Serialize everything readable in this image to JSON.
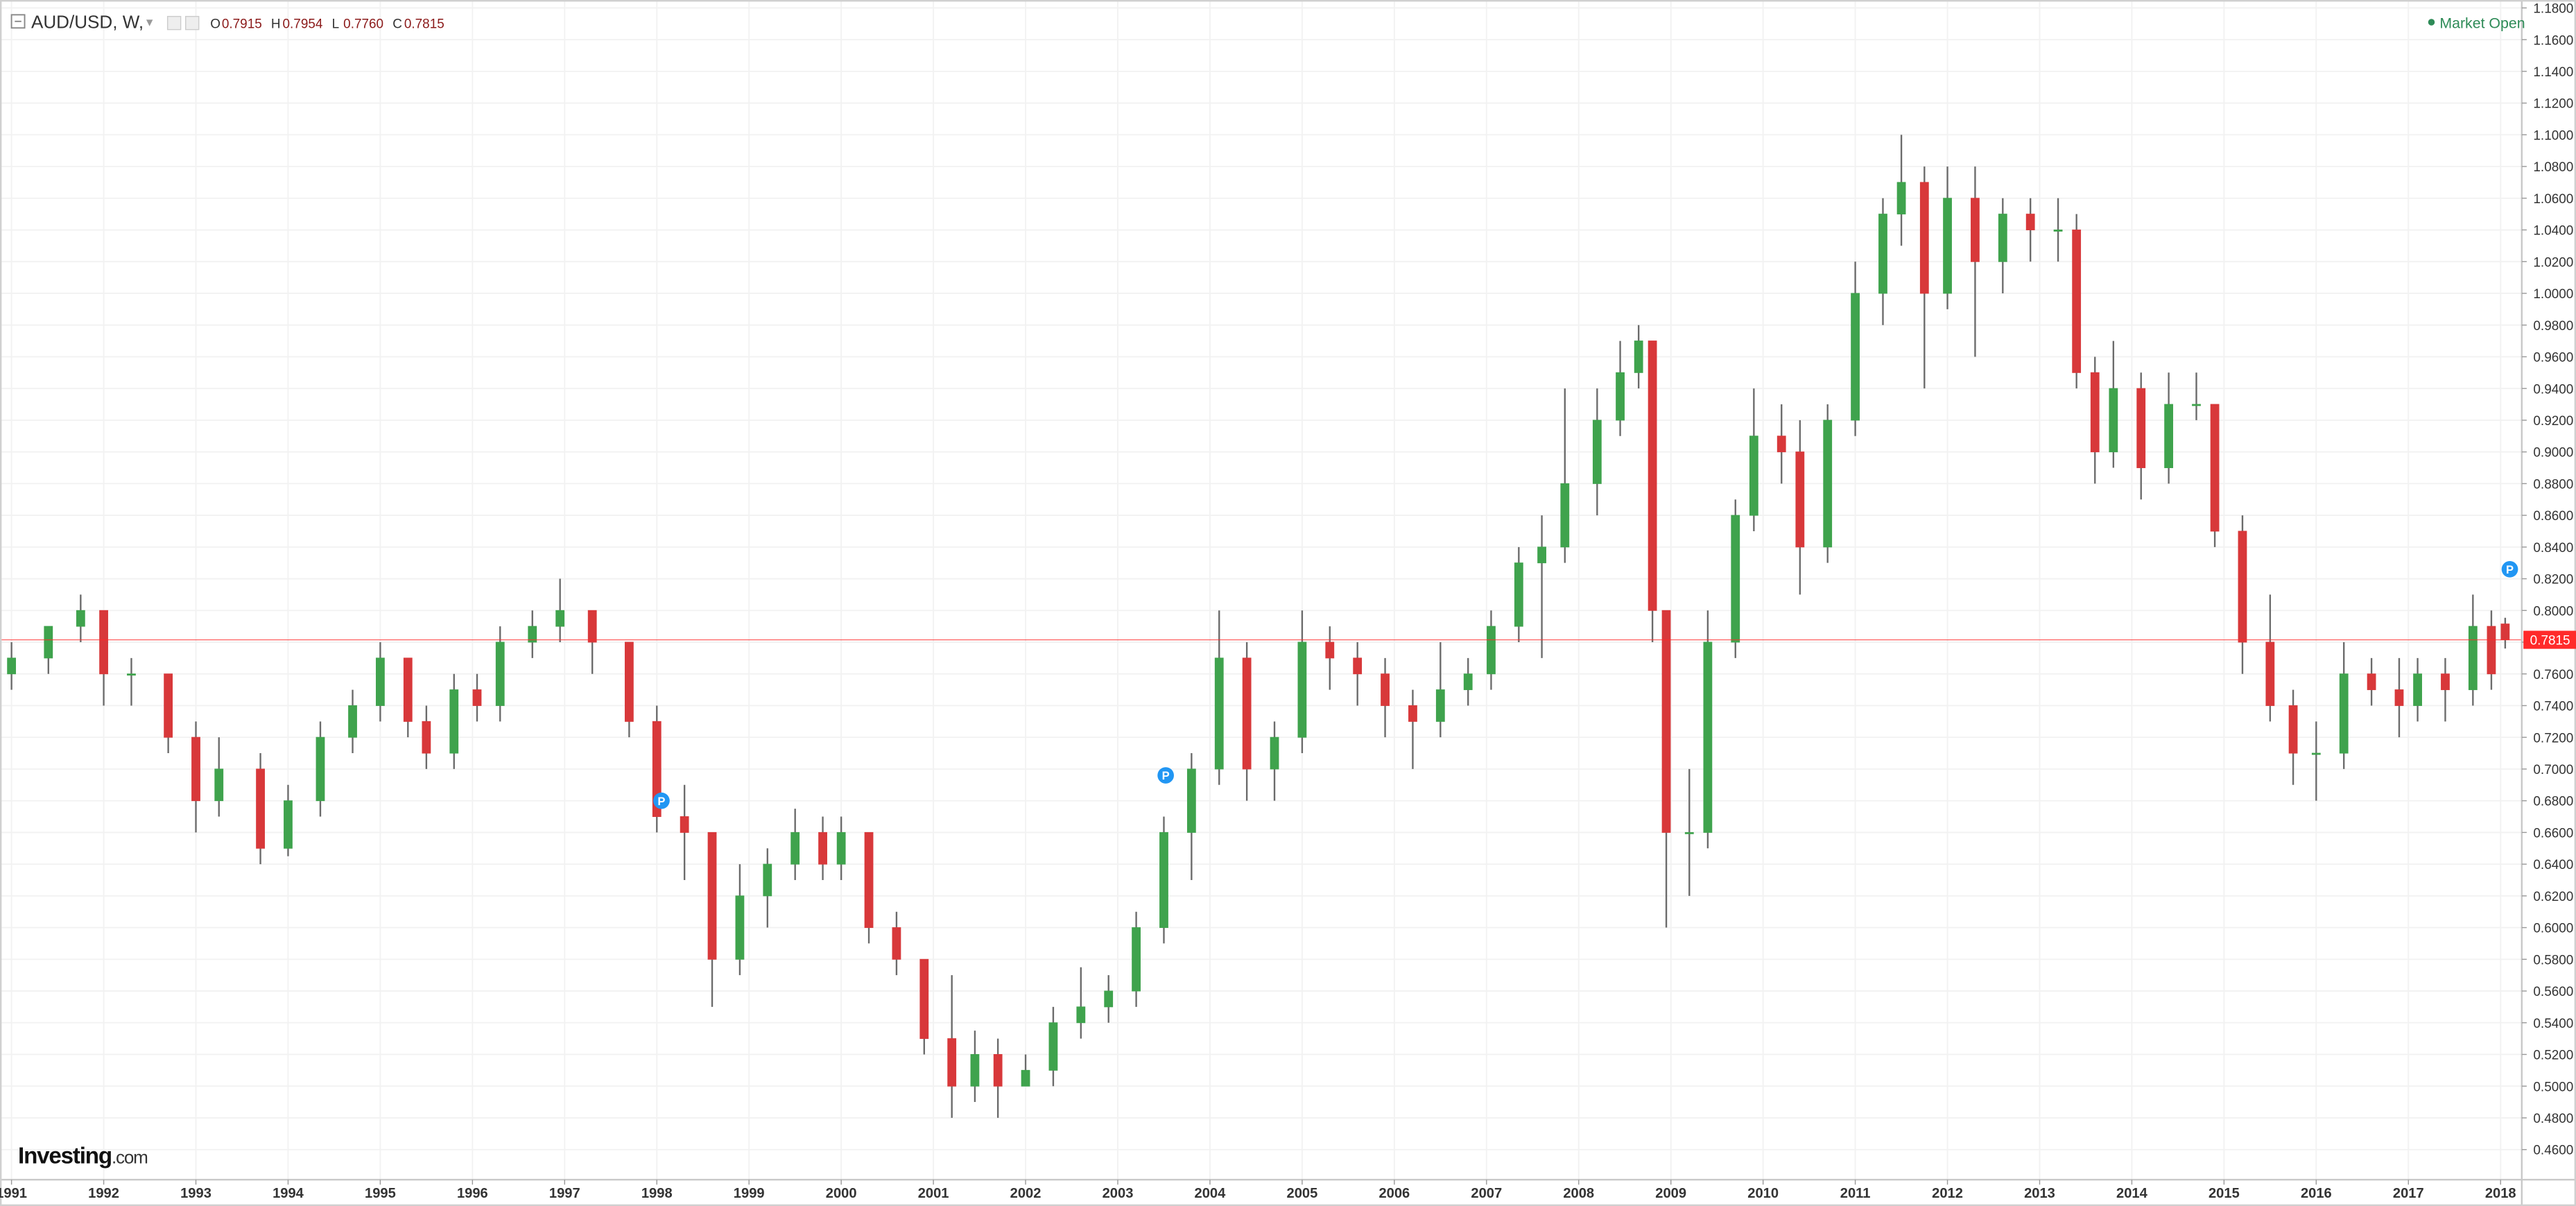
{
  "chart_data": {
    "type": "candlestick",
    "title": "AUD/USD, W,",
    "ohlc": [
      {
        "key": "O",
        "text": "0.7915"
      },
      {
        "key": "H",
        "text": "0.7954"
      },
      {
        "key": "L",
        "text": "0.7760"
      },
      {
        "key": "C",
        "text": "0.7815"
      }
    ],
    "status": "Market Open",
    "watermark": {
      "brand": "Investing",
      "suffix": ".com"
    },
    "colors": {
      "up": "#3fa34d",
      "down": "#d8383a",
      "wick": "#6b6b6b",
      "grid": "#f2f2f2",
      "last": "#ff2a2a",
      "marker": "#2196f3",
      "status": "#2e8b57"
    },
    "grid": true,
    "xlim": [
      1990.875,
      2018.23
    ],
    "ylim": [
      0.441,
      1.185
    ],
    "xticks": [
      1991,
      1992,
      1993,
      1994,
      1995,
      1996,
      1997,
      1998,
      1999,
      2000,
      2001,
      2002,
      2003,
      2004,
      2005,
      2006,
      2007,
      2008,
      2009,
      2010,
      2011,
      2012,
      2013,
      2014,
      2015,
      2016,
      2017,
      2018
    ],
    "yticks": [
      {
        "value": 0.46,
        "label": "0.4600"
      },
      {
        "value": 0.48,
        "label": "0.4800"
      },
      {
        "value": 0.5,
        "label": "0.5000"
      },
      {
        "value": 0.52,
        "label": "0.5200"
      },
      {
        "value": 0.54,
        "label": "0.5400"
      },
      {
        "value": 0.56,
        "label": "0.5600"
      },
      {
        "value": 0.58,
        "label": "0.5800"
      },
      {
        "value": 0.6,
        "label": "0.6000"
      },
      {
        "value": 0.62,
        "label": "0.6200"
      },
      {
        "value": 0.64,
        "label": "0.6400"
      },
      {
        "value": 0.66,
        "label": "0.6600"
      },
      {
        "value": 0.68,
        "label": "0.6800"
      },
      {
        "value": 0.7,
        "label": "0.7000"
      },
      {
        "value": 0.72,
        "label": "0.7200"
      },
      {
        "value": 0.74,
        "label": "0.7400"
      },
      {
        "value": 0.76,
        "label": "0.7600"
      },
      {
        "value": 0.78,
        "label": "0.7800"
      },
      {
        "value": 0.8,
        "label": "0.8000"
      },
      {
        "value": 0.82,
        "label": "0.8200"
      },
      {
        "value": 0.84,
        "label": "0.8400"
      },
      {
        "value": 0.86,
        "label": "0.8600"
      },
      {
        "value": 0.88,
        "label": "0.8800"
      },
      {
        "value": 0.9,
        "label": "0.9000"
      },
      {
        "value": 0.92,
        "label": "0.9200"
      },
      {
        "value": 0.94,
        "label": "0.9400"
      },
      {
        "value": 0.96,
        "label": "0.9600"
      },
      {
        "value": 0.98,
        "label": "0.9800"
      },
      {
        "value": 1.0,
        "label": "1.0000"
      },
      {
        "value": 1.02,
        "label": "1.0200"
      },
      {
        "value": 1.04,
        "label": "1.0400"
      },
      {
        "value": 1.06,
        "label": "1.0600"
      },
      {
        "value": 1.08,
        "label": "1.0800"
      },
      {
        "value": 1.1,
        "label": "1.1000"
      },
      {
        "value": 1.12,
        "label": "1.1200"
      },
      {
        "value": 1.14,
        "label": "1.1400"
      },
      {
        "value": 1.16,
        "label": "1.1600"
      },
      {
        "value": 1.18,
        "label": "1.1800"
      }
    ],
    "last_price": 0.7815,
    "markers": [
      {
        "label": "P",
        "x": 1998.05,
        "y": 0.68
      },
      {
        "label": "P",
        "x": 2003.52,
        "y": 0.696
      },
      {
        "label": "P",
        "x": 2018.1,
        "y": 0.826
      }
    ],
    "candles": [
      {
        "x": 1991.0,
        "open": 0.76,
        "high": 0.78,
        "low": 0.75,
        "close": 0.77
      },
      {
        "x": 1991.4,
        "open": 0.77,
        "high": 0.79,
        "low": 0.76,
        "close": 0.79
      },
      {
        "x": 1991.75,
        "open": 0.79,
        "high": 0.81,
        "low": 0.78,
        "close": 0.8
      },
      {
        "x": 1992.0,
        "open": 0.8,
        "high": 0.8,
        "low": 0.74,
        "close": 0.76
      },
      {
        "x": 1992.3,
        "open": 0.76,
        "high": 0.77,
        "low": 0.74,
        "close": 0.76
      },
      {
        "x": 1992.7,
        "open": 0.76,
        "high": 0.76,
        "low": 0.71,
        "close": 0.72
      },
      {
        "x": 1993.0,
        "open": 0.72,
        "high": 0.73,
        "low": 0.66,
        "close": 0.68
      },
      {
        "x": 1993.25,
        "open": 0.68,
        "high": 0.72,
        "low": 0.67,
        "close": 0.7
      },
      {
        "x": 1993.7,
        "open": 0.7,
        "high": 0.71,
        "low": 0.64,
        "close": 0.65
      },
      {
        "x": 1994.0,
        "open": 0.65,
        "high": 0.69,
        "low": 0.645,
        "close": 0.68
      },
      {
        "x": 1994.35,
        "open": 0.68,
        "high": 0.73,
        "low": 0.67,
        "close": 0.72
      },
      {
        "x": 1994.7,
        "open": 0.72,
        "high": 0.75,
        "low": 0.71,
        "close": 0.74
      },
      {
        "x": 1995.0,
        "open": 0.74,
        "high": 0.78,
        "low": 0.73,
        "close": 0.77
      },
      {
        "x": 1995.3,
        "open": 0.77,
        "high": 0.77,
        "low": 0.72,
        "close": 0.73
      },
      {
        "x": 1995.5,
        "open": 0.73,
        "high": 0.74,
        "low": 0.7,
        "close": 0.71
      },
      {
        "x": 1995.8,
        "open": 0.71,
        "high": 0.76,
        "low": 0.7,
        "close": 0.75
      },
      {
        "x": 1996.05,
        "open": 0.75,
        "high": 0.76,
        "low": 0.73,
        "close": 0.74
      },
      {
        "x": 1996.3,
        "open": 0.74,
        "high": 0.79,
        "low": 0.73,
        "close": 0.78
      },
      {
        "x": 1996.65,
        "open": 0.78,
        "high": 0.8,
        "low": 0.77,
        "close": 0.79
      },
      {
        "x": 1996.95,
        "open": 0.79,
        "high": 0.82,
        "low": 0.78,
        "close": 0.8
      },
      {
        "x": 1997.3,
        "open": 0.8,
        "high": 0.8,
        "low": 0.76,
        "close": 0.78
      },
      {
        "x": 1997.7,
        "open": 0.78,
        "high": 0.78,
        "low": 0.72,
        "close": 0.73
      },
      {
        "x": 1998.0,
        "open": 0.73,
        "high": 0.74,
        "low": 0.66,
        "close": 0.67
      },
      {
        "x": 1998.3,
        "open": 0.67,
        "high": 0.69,
        "low": 0.63,
        "close": 0.66
      },
      {
        "x": 1998.6,
        "open": 0.66,
        "high": 0.66,
        "low": 0.55,
        "close": 0.58
      },
      {
        "x": 1998.9,
        "open": 0.58,
        "high": 0.64,
        "low": 0.57,
        "close": 0.62
      },
      {
        "x": 1999.2,
        "open": 0.62,
        "high": 0.65,
        "low": 0.6,
        "close": 0.64
      },
      {
        "x": 1999.5,
        "open": 0.64,
        "high": 0.675,
        "low": 0.63,
        "close": 0.66
      },
      {
        "x": 1999.8,
        "open": 0.66,
        "high": 0.67,
        "low": 0.63,
        "close": 0.64
      },
      {
        "x": 2000.0,
        "open": 0.64,
        "high": 0.67,
        "low": 0.63,
        "close": 0.66
      },
      {
        "x": 2000.3,
        "open": 0.66,
        "high": 0.66,
        "low": 0.59,
        "close": 0.6
      },
      {
        "x": 2000.6,
        "open": 0.6,
        "high": 0.61,
        "low": 0.57,
        "close": 0.58
      },
      {
        "x": 2000.9,
        "open": 0.58,
        "high": 0.58,
        "low": 0.52,
        "close": 0.53
      },
      {
        "x": 2001.2,
        "open": 0.53,
        "high": 0.57,
        "low": 0.48,
        "close": 0.5
      },
      {
        "x": 2001.45,
        "open": 0.5,
        "high": 0.535,
        "low": 0.49,
        "close": 0.52
      },
      {
        "x": 2001.7,
        "open": 0.52,
        "high": 0.53,
        "low": 0.48,
        "close": 0.5
      },
      {
        "x": 2002.0,
        "open": 0.5,
        "high": 0.52,
        "low": 0.5,
        "close": 0.51
      },
      {
        "x": 2002.3,
        "open": 0.51,
        "high": 0.55,
        "low": 0.5,
        "close": 0.54
      },
      {
        "x": 2002.6,
        "open": 0.54,
        "high": 0.575,
        "low": 0.53,
        "close": 0.55
      },
      {
        "x": 2002.9,
        "open": 0.55,
        "high": 0.57,
        "low": 0.54,
        "close": 0.56
      },
      {
        "x": 2003.2,
        "open": 0.56,
        "high": 0.61,
        "low": 0.55,
        "close": 0.6
      },
      {
        "x": 2003.5,
        "open": 0.6,
        "high": 0.67,
        "low": 0.59,
        "close": 0.66
      },
      {
        "x": 2003.8,
        "open": 0.66,
        "high": 0.71,
        "low": 0.63,
        "close": 0.7
      },
      {
        "x": 2004.1,
        "open": 0.7,
        "high": 0.8,
        "low": 0.69,
        "close": 0.77
      },
      {
        "x": 2004.4,
        "open": 0.77,
        "high": 0.78,
        "low": 0.68,
        "close": 0.7
      },
      {
        "x": 2004.7,
        "open": 0.7,
        "high": 0.73,
        "low": 0.68,
        "close": 0.72
      },
      {
        "x": 2005.0,
        "open": 0.72,
        "high": 0.8,
        "low": 0.71,
        "close": 0.78
      },
      {
        "x": 2005.3,
        "open": 0.78,
        "high": 0.79,
        "low": 0.75,
        "close": 0.77
      },
      {
        "x": 2005.6,
        "open": 0.77,
        "high": 0.78,
        "low": 0.74,
        "close": 0.76
      },
      {
        "x": 2005.9,
        "open": 0.76,
        "high": 0.77,
        "low": 0.72,
        "close": 0.74
      },
      {
        "x": 2006.2,
        "open": 0.74,
        "high": 0.75,
        "low": 0.7,
        "close": 0.73
      },
      {
        "x": 2006.5,
        "open": 0.73,
        "high": 0.78,
        "low": 0.72,
        "close": 0.75
      },
      {
        "x": 2006.8,
        "open": 0.75,
        "high": 0.77,
        "low": 0.74,
        "close": 0.76
      },
      {
        "x": 2007.05,
        "open": 0.76,
        "high": 0.8,
        "low": 0.75,
        "close": 0.79
      },
      {
        "x": 2007.35,
        "open": 0.79,
        "high": 0.84,
        "low": 0.78,
        "close": 0.83
      },
      {
        "x": 2007.6,
        "open": 0.83,
        "high": 0.86,
        "low": 0.77,
        "close": 0.84
      },
      {
        "x": 2007.85,
        "open": 0.84,
        "high": 0.94,
        "low": 0.83,
        "close": 0.88
      },
      {
        "x": 2008.2,
        "open": 0.88,
        "high": 0.94,
        "low": 0.86,
        "close": 0.92
      },
      {
        "x": 2008.45,
        "open": 0.92,
        "high": 0.97,
        "low": 0.91,
        "close": 0.95
      },
      {
        "x": 2008.65,
        "open": 0.95,
        "high": 0.98,
        "low": 0.94,
        "close": 0.97
      },
      {
        "x": 2008.8,
        "open": 0.97,
        "high": 0.97,
        "low": 0.78,
        "close": 0.8
      },
      {
        "x": 2008.95,
        "open": 0.8,
        "high": 0.8,
        "low": 0.6,
        "close": 0.66
      },
      {
        "x": 2009.2,
        "open": 0.66,
        "high": 0.7,
        "low": 0.62,
        "close": 0.66
      },
      {
        "x": 2009.4,
        "open": 0.66,
        "high": 0.8,
        "low": 0.65,
        "close": 0.78
      },
      {
        "x": 2009.7,
        "open": 0.78,
        "high": 0.87,
        "low": 0.77,
        "close": 0.86
      },
      {
        "x": 2009.9,
        "open": 0.86,
        "high": 0.94,
        "low": 0.85,
        "close": 0.91
      },
      {
        "x": 2010.2,
        "open": 0.91,
        "high": 0.93,
        "low": 0.88,
        "close": 0.9
      },
      {
        "x": 2010.4,
        "open": 0.9,
        "high": 0.92,
        "low": 0.81,
        "close": 0.84
      },
      {
        "x": 2010.7,
        "open": 0.84,
        "high": 0.93,
        "low": 0.83,
        "close": 0.92
      },
      {
        "x": 2011.0,
        "open": 0.92,
        "high": 1.02,
        "low": 0.91,
        "close": 1.0
      },
      {
        "x": 2011.3,
        "open": 1.0,
        "high": 1.06,
        "low": 0.98,
        "close": 1.05
      },
      {
        "x": 2011.5,
        "open": 1.05,
        "high": 1.1,
        "low": 1.03,
        "close": 1.07
      },
      {
        "x": 2011.75,
        "open": 1.07,
        "high": 1.08,
        "low": 0.94,
        "close": 1.0
      },
      {
        "x": 2012.0,
        "open": 1.0,
        "high": 1.08,
        "low": 0.99,
        "close": 1.06
      },
      {
        "x": 2012.3,
        "open": 1.06,
        "high": 1.08,
        "low": 0.96,
        "close": 1.02
      },
      {
        "x": 2012.6,
        "open": 1.02,
        "high": 1.06,
        "low": 1.0,
        "close": 1.05
      },
      {
        "x": 2012.9,
        "open": 1.05,
        "high": 1.06,
        "low": 1.02,
        "close": 1.04
      },
      {
        "x": 2013.2,
        "open": 1.04,
        "high": 1.06,
        "low": 1.02,
        "close": 1.04
      },
      {
        "x": 2013.4,
        "open": 1.04,
        "high": 1.05,
        "low": 0.94,
        "close": 0.95
      },
      {
        "x": 2013.6,
        "open": 0.95,
        "high": 0.96,
        "low": 0.88,
        "close": 0.9
      },
      {
        "x": 2013.8,
        "open": 0.9,
        "high": 0.97,
        "low": 0.89,
        "close": 0.94
      },
      {
        "x": 2014.1,
        "open": 0.94,
        "high": 0.95,
        "low": 0.87,
        "close": 0.89
      },
      {
        "x": 2014.4,
        "open": 0.89,
        "high": 0.95,
        "low": 0.88,
        "close": 0.93
      },
      {
        "x": 2014.7,
        "open": 0.93,
        "high": 0.95,
        "low": 0.92,
        "close": 0.93
      },
      {
        "x": 2014.9,
        "open": 0.93,
        "high": 0.93,
        "low": 0.84,
        "close": 0.85
      },
      {
        "x": 2015.2,
        "open": 0.85,
        "high": 0.86,
        "low": 0.76,
        "close": 0.78
      },
      {
        "x": 2015.5,
        "open": 0.78,
        "high": 0.81,
        "low": 0.73,
        "close": 0.74
      },
      {
        "x": 2015.75,
        "open": 0.74,
        "high": 0.75,
        "low": 0.69,
        "close": 0.71
      },
      {
        "x": 2016.0,
        "open": 0.71,
        "high": 0.73,
        "low": 0.68,
        "close": 0.71
      },
      {
        "x": 2016.3,
        "open": 0.71,
        "high": 0.78,
        "low": 0.7,
        "close": 0.76
      },
      {
        "x": 2016.6,
        "open": 0.76,
        "high": 0.77,
        "low": 0.74,
        "close": 0.75
      },
      {
        "x": 2016.9,
        "open": 0.75,
        "high": 0.77,
        "low": 0.72,
        "close": 0.74
      },
      {
        "x": 2017.1,
        "open": 0.74,
        "high": 0.77,
        "low": 0.73,
        "close": 0.76
      },
      {
        "x": 2017.4,
        "open": 0.76,
        "high": 0.77,
        "low": 0.73,
        "close": 0.75
      },
      {
        "x": 2017.7,
        "open": 0.75,
        "high": 0.81,
        "low": 0.74,
        "close": 0.79
      },
      {
        "x": 2017.9,
        "open": 0.79,
        "high": 0.8,
        "low": 0.75,
        "close": 0.76
      },
      {
        "x": 2018.05,
        "open": 0.7915,
        "high": 0.7954,
        "low": 0.776,
        "close": 0.7815
      }
    ]
  }
}
